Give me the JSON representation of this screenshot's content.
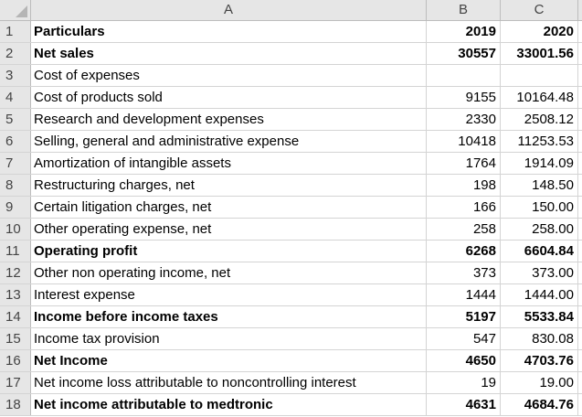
{
  "columns": [
    "A",
    "B",
    "C"
  ],
  "rows": [
    {
      "n": "1",
      "a": "Particulars",
      "b": "2019",
      "c": "2020",
      "bold": true
    },
    {
      "n": "2",
      "a": "Net sales",
      "b": "30557",
      "c": "33001.56",
      "bold": true
    },
    {
      "n": "3",
      "a": "Cost of expenses",
      "b": "",
      "c": "",
      "bold": false
    },
    {
      "n": "4",
      "a": "Cost of products sold",
      "b": "9155",
      "c": "10164.48",
      "bold": false
    },
    {
      "n": "5",
      "a": "Research and development expenses",
      "b": "2330",
      "c": "2508.12",
      "bold": false
    },
    {
      "n": "6",
      "a": "Selling, general and administrative expense",
      "b": "10418",
      "c": "11253.53",
      "bold": false
    },
    {
      "n": "7",
      "a": "Amortization of intangible assets",
      "b": "1764",
      "c": "1914.09",
      "bold": false
    },
    {
      "n": "8",
      "a": "Restructuring charges, net",
      "b": "198",
      "c": "148.50",
      "bold": false
    },
    {
      "n": "9",
      "a": "Certain litigation charges, net",
      "b": "166",
      "c": "150.00",
      "bold": false
    },
    {
      "n": "10",
      "a": "Other operating expense, net",
      "b": "258",
      "c": "258.00",
      "bold": false
    },
    {
      "n": "11",
      "a": "Operating profit",
      "b": "6268",
      "c": "6604.84",
      "bold": true
    },
    {
      "n": "12",
      "a": "Other non operating income, net",
      "b": "373",
      "c": "373.00",
      "bold": false
    },
    {
      "n": "13",
      "a": "Interest expense",
      "b": "1444",
      "c": "1444.00",
      "bold": false
    },
    {
      "n": "14",
      "a": "Income before income taxes",
      "b": "5197",
      "c": "5533.84",
      "bold": true
    },
    {
      "n": "15",
      "a": "Income tax provision",
      "b": "547",
      "c": "830.08",
      "bold": false
    },
    {
      "n": "16",
      "a": "Net Income",
      "b": "4650",
      "c": "4703.76",
      "bold": true
    },
    {
      "n": "17",
      "a": "Net income loss attributable to noncontrolling interest",
      "b": "19",
      "c": "19.00",
      "bold": false
    },
    {
      "n": "18",
      "a": "Net income attributable to medtronic",
      "b": "4631",
      "c": "4684.76",
      "bold": true
    }
  ]
}
